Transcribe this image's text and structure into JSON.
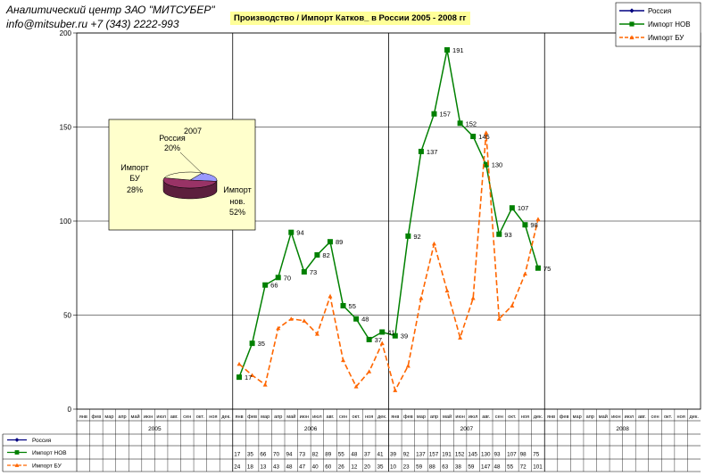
{
  "header": {
    "line1": "Аналитический центр ЗАО \"МИТСУБЕР\"",
    "line2": "info@mitsuber.ru +7 (343) 2222-993"
  },
  "chart_data": [
    {
      "type": "line",
      "title": "Производство / Импорт Катков_ в России 2005 - 2008 гг",
      "ylim": [
        0,
        200
      ],
      "yticks": [
        0,
        50,
        100,
        150,
        200
      ],
      "grid": true,
      "legend": "top-right",
      "months": [
        "янв",
        "фев",
        "мар",
        "апр",
        "май",
        "июн",
        "июл",
        "авг.",
        "сен",
        "окт.",
        "ноя",
        "дек."
      ],
      "years": [
        "2005",
        "2006",
        "2007",
        "2008"
      ],
      "series": [
        {
          "name": "Россия",
          "color": "#000080",
          "marker": "diamond",
          "values": []
        },
        {
          "name": "Импорт НОВ",
          "color": "#008000",
          "marker": "square",
          "data_labels": true,
          "values": [
            null,
            null,
            null,
            null,
            null,
            null,
            null,
            null,
            null,
            null,
            null,
            null,
            17,
            35,
            66,
            70,
            94,
            73,
            82,
            89,
            55,
            48,
            37,
            41,
            39,
            92,
            137,
            157,
            191,
            152,
            145,
            130,
            93,
            107,
            98,
            75,
            null,
            null,
            null,
            null,
            null,
            null,
            null,
            null,
            null,
            null,
            null,
            null
          ]
        },
        {
          "name": "Импорт БУ",
          "color": "#ff6600",
          "marker": "triangle",
          "dashed": true,
          "values": [
            null,
            null,
            null,
            null,
            null,
            null,
            null,
            null,
            null,
            null,
            null,
            null,
            24,
            18,
            13,
            43,
            48,
            47,
            40,
            60,
            26,
            12,
            20,
            35,
            10,
            23,
            59,
            88,
            63,
            38,
            59,
            147,
            48,
            55,
            72,
            101,
            null,
            null,
            null,
            null,
            null,
            null,
            null,
            null,
            null,
            null,
            null,
            null
          ]
        }
      ]
    },
    {
      "type": "pie",
      "title": "2007",
      "slices": [
        {
          "label": "Россия",
          "value": 20,
          "display": "20%",
          "color": "#9999ff"
        },
        {
          "label": "Импорт нов.",
          "value": 52,
          "display": "52%",
          "color": "#993366"
        },
        {
          "label": "Импорт БУ",
          "value": 28,
          "display": "28%",
          "color": "#ffffcc"
        }
      ]
    }
  ]
}
